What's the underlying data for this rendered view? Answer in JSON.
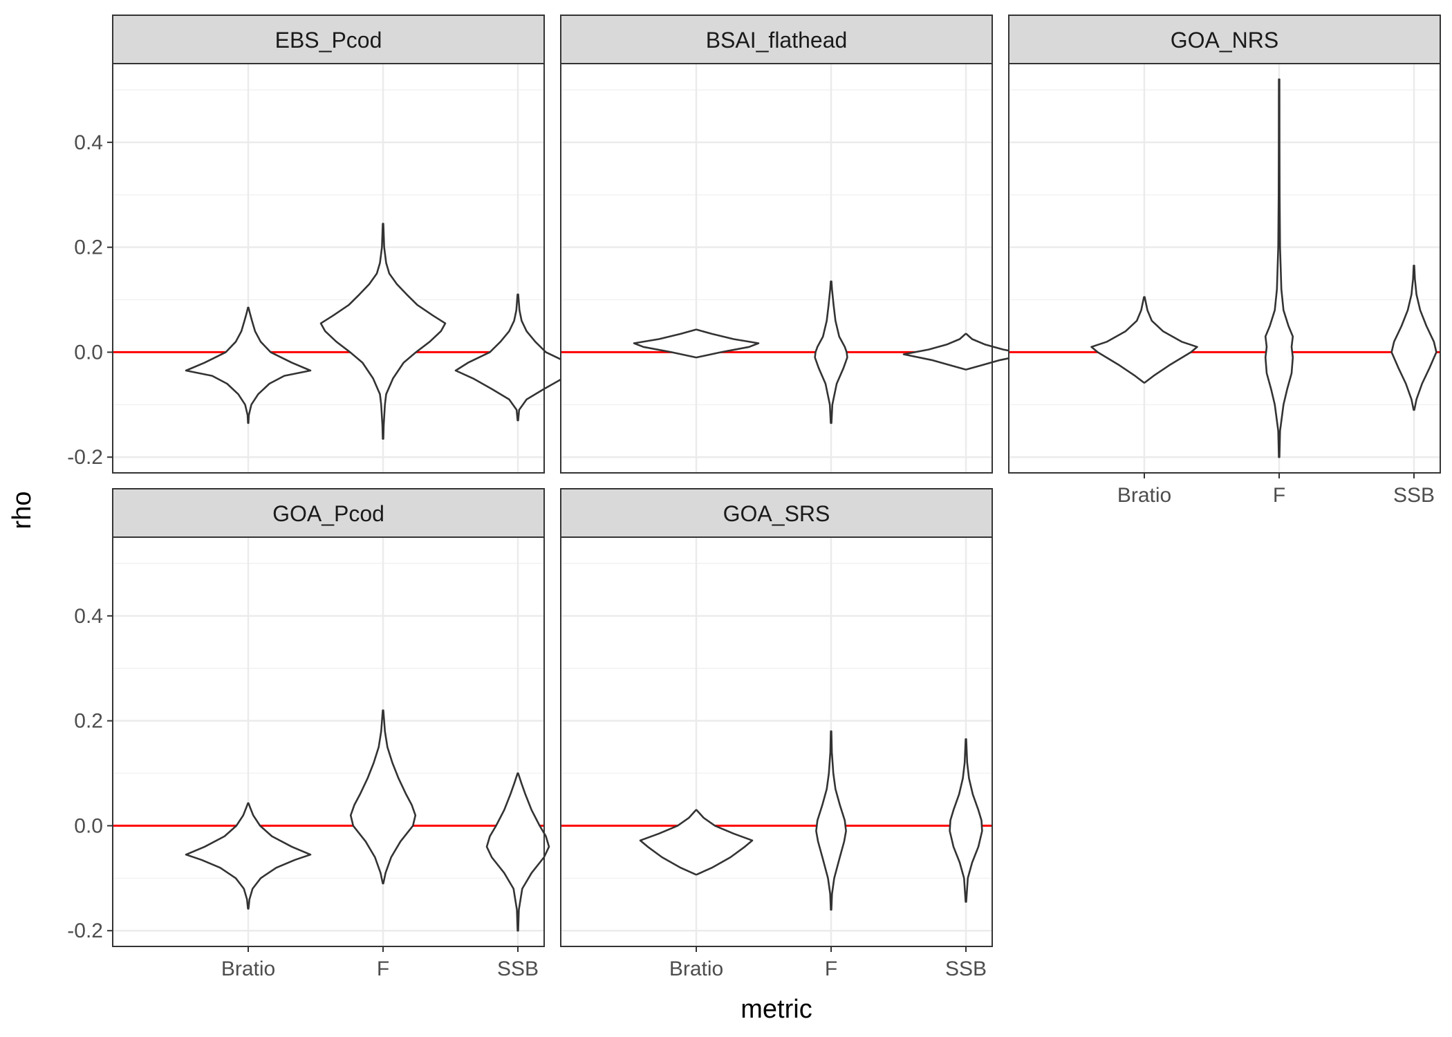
{
  "chart_data": {
    "type": "violin",
    "xlabel": "metric",
    "ylabel": "rho",
    "categories": [
      "Bratio",
      "F",
      "SSB"
    ],
    "yticks": [
      -0.2,
      0.0,
      0.2,
      0.4
    ],
    "ytick_labels": [
      "-0.2",
      "0.0",
      "0.2",
      "0.4"
    ],
    "ylim": [
      -0.23,
      0.55
    ],
    "grid": true,
    "reference_line": {
      "y": 0.0,
      "color": "#ff0000"
    },
    "theme": {
      "strip_fill": "#d9d9d9",
      "panel_border": "#333333",
      "grid_major": "#ebebeb",
      "grid_minor": "#f2f2f2",
      "violin_stroke": "#333333"
    },
    "facets": [
      {
        "name": "EBS_Pcod",
        "violins": [
          {
            "metric": "Bratio",
            "profile": [
              [
                -0.135,
                0.003
              ],
              [
                -0.12,
                0.01
              ],
              [
                -0.1,
                0.05
              ],
              [
                -0.08,
                0.16
              ],
              [
                -0.06,
                0.34
              ],
              [
                -0.045,
                0.58
              ],
              [
                -0.035,
                1.0
              ],
              [
                -0.02,
                0.7
              ],
              [
                0.0,
                0.36
              ],
              [
                0.02,
                0.2
              ],
              [
                0.04,
                0.11
              ],
              [
                0.06,
                0.06
              ],
              [
                0.075,
                0.025
              ],
              [
                0.085,
                0.004
              ]
            ]
          },
          {
            "metric": "F",
            "profile": [
              [
                -0.165,
                0.004
              ],
              [
                -0.14,
                0.01
              ],
              [
                -0.1,
                0.03
              ],
              [
                -0.08,
                0.05
              ],
              [
                -0.05,
                0.16
              ],
              [
                -0.02,
                0.33
              ],
              [
                0.0,
                0.53
              ],
              [
                0.02,
                0.75
              ],
              [
                0.04,
                0.93
              ],
              [
                0.055,
                1.0
              ],
              [
                0.07,
                0.8
              ],
              [
                0.09,
                0.55
              ],
              [
                0.11,
                0.38
              ],
              [
                0.13,
                0.22
              ],
              [
                0.15,
                0.1
              ],
              [
                0.17,
                0.05
              ],
              [
                0.2,
                0.018
              ],
              [
                0.245,
                0.004
              ]
            ]
          },
          {
            "metric": "SSB",
            "profile": [
              [
                -0.13,
                0.004
              ],
              [
                -0.11,
                0.02
              ],
              [
                -0.09,
                0.14
              ],
              [
                -0.07,
                0.42
              ],
              [
                -0.05,
                0.72
              ],
              [
                -0.035,
                1.0
              ],
              [
                -0.02,
                0.8
              ],
              [
                0.0,
                0.45
              ],
              [
                0.02,
                0.28
              ],
              [
                0.04,
                0.14
              ],
              [
                0.06,
                0.06
              ],
              [
                0.08,
                0.025
              ],
              [
                0.11,
                0.005
              ]
            ]
          }
        ]
      },
      {
        "name": "BSAI_flathead",
        "violins": [
          {
            "metric": "Bratio",
            "profile": [
              [
                -0.01,
                0.005
              ],
              [
                0.0,
                0.4
              ],
              [
                0.01,
                0.85
              ],
              [
                0.017,
                1.0
              ],
              [
                0.025,
                0.6
              ],
              [
                0.035,
                0.25
              ],
              [
                0.043,
                0.005
              ]
            ]
          },
          {
            "metric": "F",
            "profile": [
              [
                -0.135,
                0.005
              ],
              [
                -0.1,
                0.02
              ],
              [
                -0.06,
                0.09
              ],
              [
                -0.03,
                0.2
              ],
              [
                -0.01,
                0.26
              ],
              [
                0.0,
                0.25
              ],
              [
                0.01,
                0.22
              ],
              [
                0.03,
                0.13
              ],
              [
                0.06,
                0.07
              ],
              [
                0.09,
                0.04
              ],
              [
                0.12,
                0.015
              ],
              [
                0.135,
                0.005
              ]
            ]
          },
          {
            "metric": "SSB",
            "profile": [
              [
                -0.033,
                0.005
              ],
              [
                -0.025,
                0.25
              ],
              [
                -0.015,
                0.55
              ],
              [
                -0.004,
                1.0
              ],
              [
                0.005,
                0.6
              ],
              [
                0.015,
                0.3
              ],
              [
                0.025,
                0.1
              ],
              [
                0.035,
                0.005
              ]
            ]
          }
        ]
      },
      {
        "name": "GOA_NRS",
        "violins": [
          {
            "metric": "Bratio",
            "profile": [
              [
                -0.058,
                0.005
              ],
              [
                -0.045,
                0.15
              ],
              [
                -0.025,
                0.4
              ],
              [
                0.0,
                0.75
              ],
              [
                0.01,
                0.85
              ],
              [
                0.02,
                0.6
              ],
              [
                0.04,
                0.3
              ],
              [
                0.06,
                0.12
              ],
              [
                0.08,
                0.05
              ],
              [
                0.105,
                0.005
              ]
            ]
          },
          {
            "metric": "F",
            "profile": [
              [
                -0.2,
                0.004
              ],
              [
                -0.15,
                0.015
              ],
              [
                -0.1,
                0.07
              ],
              [
                -0.07,
                0.13
              ],
              [
                -0.04,
                0.2
              ],
              [
                -0.01,
                0.22
              ],
              [
                0.01,
                0.2
              ],
              [
                0.03,
                0.22
              ],
              [
                0.05,
                0.15
              ],
              [
                0.08,
                0.07
              ],
              [
                0.12,
                0.035
              ],
              [
                0.2,
                0.015
              ],
              [
                0.3,
                0.008
              ],
              [
                0.4,
                0.006
              ],
              [
                0.52,
                0.004
              ]
            ]
          },
          {
            "metric": "SSB",
            "profile": [
              [
                -0.11,
                0.005
              ],
              [
                -0.09,
                0.04
              ],
              [
                -0.06,
                0.13
              ],
              [
                -0.03,
                0.25
              ],
              [
                0.0,
                0.36
              ],
              [
                0.02,
                0.32
              ],
              [
                0.05,
                0.2
              ],
              [
                0.08,
                0.1
              ],
              [
                0.11,
                0.04
              ],
              [
                0.14,
                0.015
              ],
              [
                0.165,
                0.004
              ]
            ]
          }
        ]
      },
      {
        "name": "GOA_Pcod",
        "violins": [
          {
            "metric": "Bratio",
            "profile": [
              [
                -0.158,
                0.004
              ],
              [
                -0.14,
                0.02
              ],
              [
                -0.12,
                0.07
              ],
              [
                -0.1,
                0.2
              ],
              [
                -0.08,
                0.45
              ],
              [
                -0.065,
                0.75
              ],
              [
                -0.055,
                1.0
              ],
              [
                -0.04,
                0.7
              ],
              [
                -0.02,
                0.38
              ],
              [
                0.0,
                0.19
              ],
              [
                0.02,
                0.08
              ],
              [
                0.035,
                0.03
              ],
              [
                0.043,
                0.004
              ]
            ]
          },
          {
            "metric": "F",
            "profile": [
              [
                -0.11,
                0.004
              ],
              [
                -0.09,
                0.04
              ],
              [
                -0.06,
                0.13
              ],
              [
                -0.03,
                0.28
              ],
              [
                0.0,
                0.48
              ],
              [
                0.02,
                0.52
              ],
              [
                0.04,
                0.46
              ],
              [
                0.06,
                0.37
              ],
              [
                0.09,
                0.25
              ],
              [
                0.12,
                0.15
              ],
              [
                0.15,
                0.07
              ],
              [
                0.18,
                0.03
              ],
              [
                0.22,
                0.004
              ]
            ]
          },
          {
            "metric": "SSB",
            "profile": [
              [
                -0.2,
                0.004
              ],
              [
                -0.16,
                0.015
              ],
              [
                -0.12,
                0.07
              ],
              [
                -0.09,
                0.22
              ],
              [
                -0.06,
                0.42
              ],
              [
                -0.04,
                0.5
              ],
              [
                -0.02,
                0.45
              ],
              [
                0.0,
                0.35
              ],
              [
                0.03,
                0.22
              ],
              [
                0.06,
                0.12
              ],
              [
                0.08,
                0.06
              ],
              [
                0.1,
                0.004
              ]
            ]
          }
        ]
      },
      {
        "name": "GOA_SRS",
        "violins": [
          {
            "metric": "Bratio",
            "profile": [
              [
                -0.093,
                0.005
              ],
              [
                -0.08,
                0.25
              ],
              [
                -0.06,
                0.55
              ],
              [
                -0.04,
                0.78
              ],
              [
                -0.028,
                0.9
              ],
              [
                -0.015,
                0.6
              ],
              [
                0.0,
                0.3
              ],
              [
                0.015,
                0.12
              ],
              [
                0.03,
                0.005
              ]
            ]
          },
          {
            "metric": "F",
            "profile": [
              [
                -0.16,
                0.004
              ],
              [
                -0.13,
                0.015
              ],
              [
                -0.1,
                0.05
              ],
              [
                -0.06,
                0.14
              ],
              [
                -0.03,
                0.21
              ],
              [
                -0.01,
                0.24
              ],
              [
                0.01,
                0.22
              ],
              [
                0.04,
                0.14
              ],
              [
                0.07,
                0.07
              ],
              [
                0.1,
                0.035
              ],
              [
                0.14,
                0.012
              ],
              [
                0.18,
                0.004
              ]
            ]
          },
          {
            "metric": "SSB",
            "profile": [
              [
                -0.145,
                0.004
              ],
              [
                -0.1,
                0.03
              ],
              [
                -0.07,
                0.1
              ],
              [
                -0.04,
                0.2
              ],
              [
                -0.01,
                0.26
              ],
              [
                0.01,
                0.25
              ],
              [
                0.03,
                0.2
              ],
              [
                0.06,
                0.11
              ],
              [
                0.09,
                0.05
              ],
              [
                0.12,
                0.02
              ],
              [
                0.165,
                0.004
              ]
            ]
          }
        ]
      }
    ]
  }
}
